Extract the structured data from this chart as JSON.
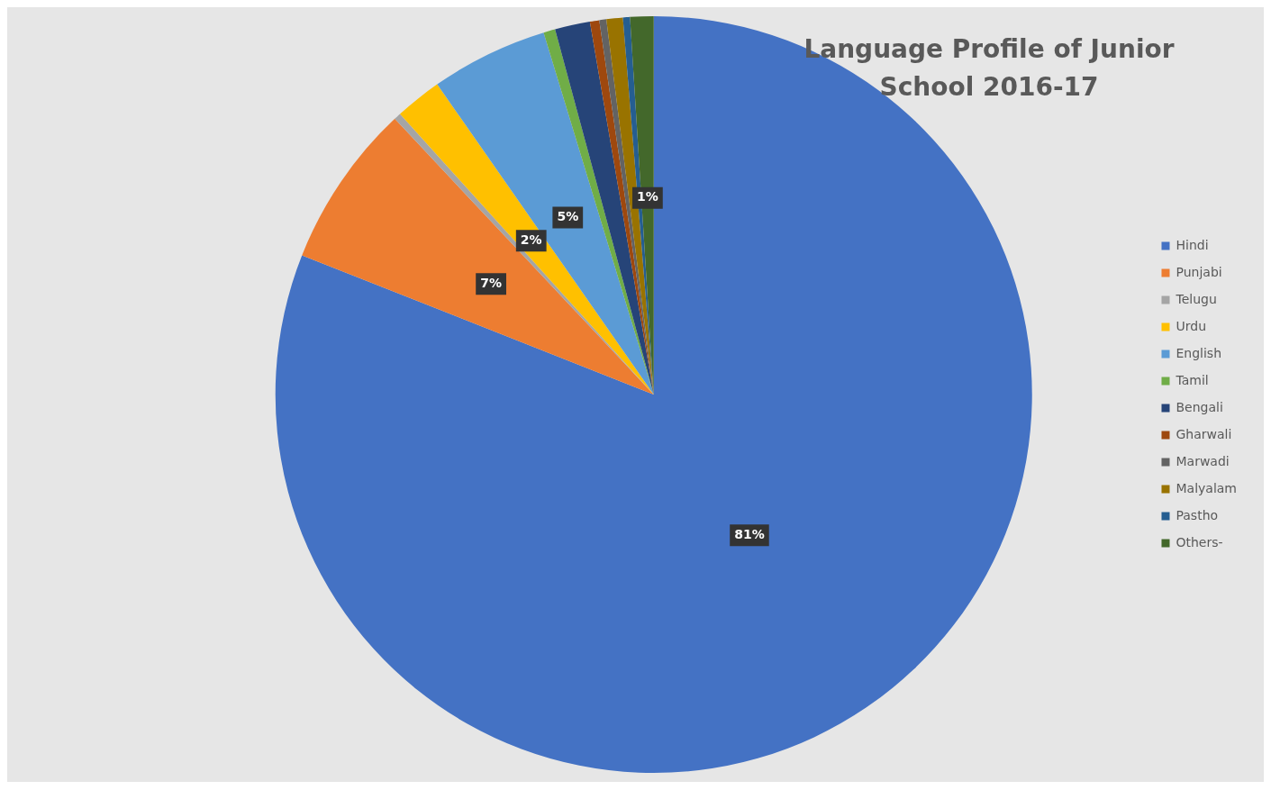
{
  "chart_data": {
    "type": "pie",
    "title": "Language Profile of Junior School 2016-17",
    "categories": [
      "Hindi",
      "Punjabi",
      "Telugu",
      "Urdu",
      "English",
      "Tamil",
      "Bengali",
      "Gharwali",
      "Marwadi",
      "Malyalam",
      "Pastho",
      "Others-"
    ],
    "values": [
      81,
      7,
      0.3,
      2,
      5,
      0.5,
      1.5,
      0.4,
      0.3,
      0.7,
      0.3,
      1
    ],
    "colors": [
      "#4472c4",
      "#ed7d31",
      "#a5a5a5",
      "#ffc000",
      "#5b9bd5",
      "#70ad47",
      "#264478",
      "#9e480e",
      "#636363",
      "#997300",
      "#255e91",
      "#43682b"
    ],
    "value_labels": [
      "81%",
      "7%",
      null,
      "2%",
      "5%",
      null,
      null,
      null,
      null,
      null,
      null,
      "1%"
    ],
    "legend": "right"
  }
}
